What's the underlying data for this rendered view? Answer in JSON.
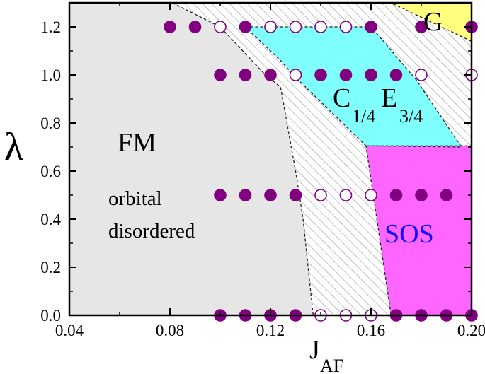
{
  "chart_data": {
    "type": "scatter",
    "title": "",
    "xlabel": "J",
    "xlabel_sub": "AF",
    "ylabel": "λ",
    "xlim": [
      0.04,
      0.2
    ],
    "ylim": [
      0.0,
      1.3
    ],
    "x_ticks": [
      "0.04",
      "0.08",
      "0.12",
      "0.16",
      "0.20"
    ],
    "x_tick_values": [
      0.04,
      0.08,
      0.12,
      0.16,
      0.2
    ],
    "y_ticks": [
      "0.0",
      "0.2",
      "0.4",
      "0.6",
      "0.8",
      "1.0",
      "1.2"
    ],
    "y_tick_values": [
      0.0,
      0.2,
      0.4,
      0.6,
      0.8,
      1.0,
      1.2
    ],
    "grid": false,
    "colors": {
      "fm_region": "#e6e6e6",
      "ce_region": "#80ffff",
      "sos_region": "#ff66ff",
      "g_region": "#ffff80",
      "hatch": "#b0b0b0",
      "marker": "#800080",
      "sos_text": "#1010ff"
    },
    "regions": [
      {
        "name": "FM",
        "label_lines": [
          "orbital",
          "disordered"
        ],
        "color": "#e6e6e6",
        "polygon": [
          [
            0.04,
            0.0
          ],
          [
            0.04,
            1.3
          ],
          [
            0.081,
            1.3
          ],
          [
            0.1,
            1.2
          ],
          [
            0.118,
            1.0
          ],
          [
            0.124,
            0.95
          ],
          [
            0.13,
            0.6
          ],
          [
            0.133,
            0.4
          ],
          [
            0.137,
            0.0
          ]
        ]
      },
      {
        "name": "C",
        "name_sub": "1/4",
        "name2": "E",
        "name2_sub": "3/4",
        "color": "#80ffff",
        "polygon": [
          [
            0.11,
            1.2
          ],
          [
            0.16,
            1.2
          ],
          [
            0.178,
            0.98
          ],
          [
            0.196,
            0.7
          ],
          [
            0.158,
            0.705
          ],
          [
            0.13,
            0.99
          ],
          [
            0.124,
            1.06
          ]
        ]
      },
      {
        "name": "SOS",
        "color": "#ff66ff",
        "polygon": [
          [
            0.158,
            0.705
          ],
          [
            0.2,
            0.705
          ],
          [
            0.2,
            0.0
          ],
          [
            0.168,
            0.0
          ]
        ]
      },
      {
        "name": "G",
        "color": "#ffff80",
        "polygon": [
          [
            0.168,
            1.3
          ],
          [
            0.2,
            1.3
          ],
          [
            0.2,
            1.14
          ]
        ]
      }
    ],
    "series": [
      {
        "marker": "filled",
        "points": [
          [
            0.08,
            1.2
          ],
          [
            0.09,
            1.2
          ],
          [
            0.11,
            1.2
          ],
          [
            0.16,
            1.2
          ],
          [
            0.18,
            1.2
          ],
          [
            0.2,
            1.2
          ],
          [
            0.1,
            1.0
          ],
          [
            0.11,
            1.0
          ],
          [
            0.12,
            1.0
          ],
          [
            0.14,
            1.0
          ],
          [
            0.15,
            1.0
          ],
          [
            0.16,
            1.0
          ],
          [
            0.17,
            1.0
          ],
          [
            0.1,
            0.5
          ],
          [
            0.11,
            0.5
          ],
          [
            0.12,
            0.5
          ],
          [
            0.13,
            0.5
          ],
          [
            0.17,
            0.5
          ],
          [
            0.18,
            0.5
          ],
          [
            0.19,
            0.5
          ],
          [
            0.1,
            0.0
          ],
          [
            0.11,
            0.0
          ],
          [
            0.12,
            0.0
          ],
          [
            0.13,
            0.0
          ],
          [
            0.17,
            0.0
          ],
          [
            0.18,
            0.0
          ],
          [
            0.19,
            0.0
          ],
          [
            0.2,
            0.0
          ]
        ]
      },
      {
        "marker": "open",
        "points": [
          [
            0.1,
            1.2
          ],
          [
            0.12,
            1.2
          ],
          [
            0.13,
            1.2
          ],
          [
            0.14,
            1.2
          ],
          [
            0.15,
            1.2
          ],
          [
            0.13,
            1.0
          ],
          [
            0.18,
            1.0
          ],
          [
            0.2,
            1.0
          ],
          [
            0.14,
            0.5
          ],
          [
            0.15,
            0.5
          ],
          [
            0.16,
            0.5
          ],
          [
            0.14,
            0.0
          ],
          [
            0.15,
            0.0
          ],
          [
            0.16,
            0.0
          ]
        ]
      }
    ]
  }
}
